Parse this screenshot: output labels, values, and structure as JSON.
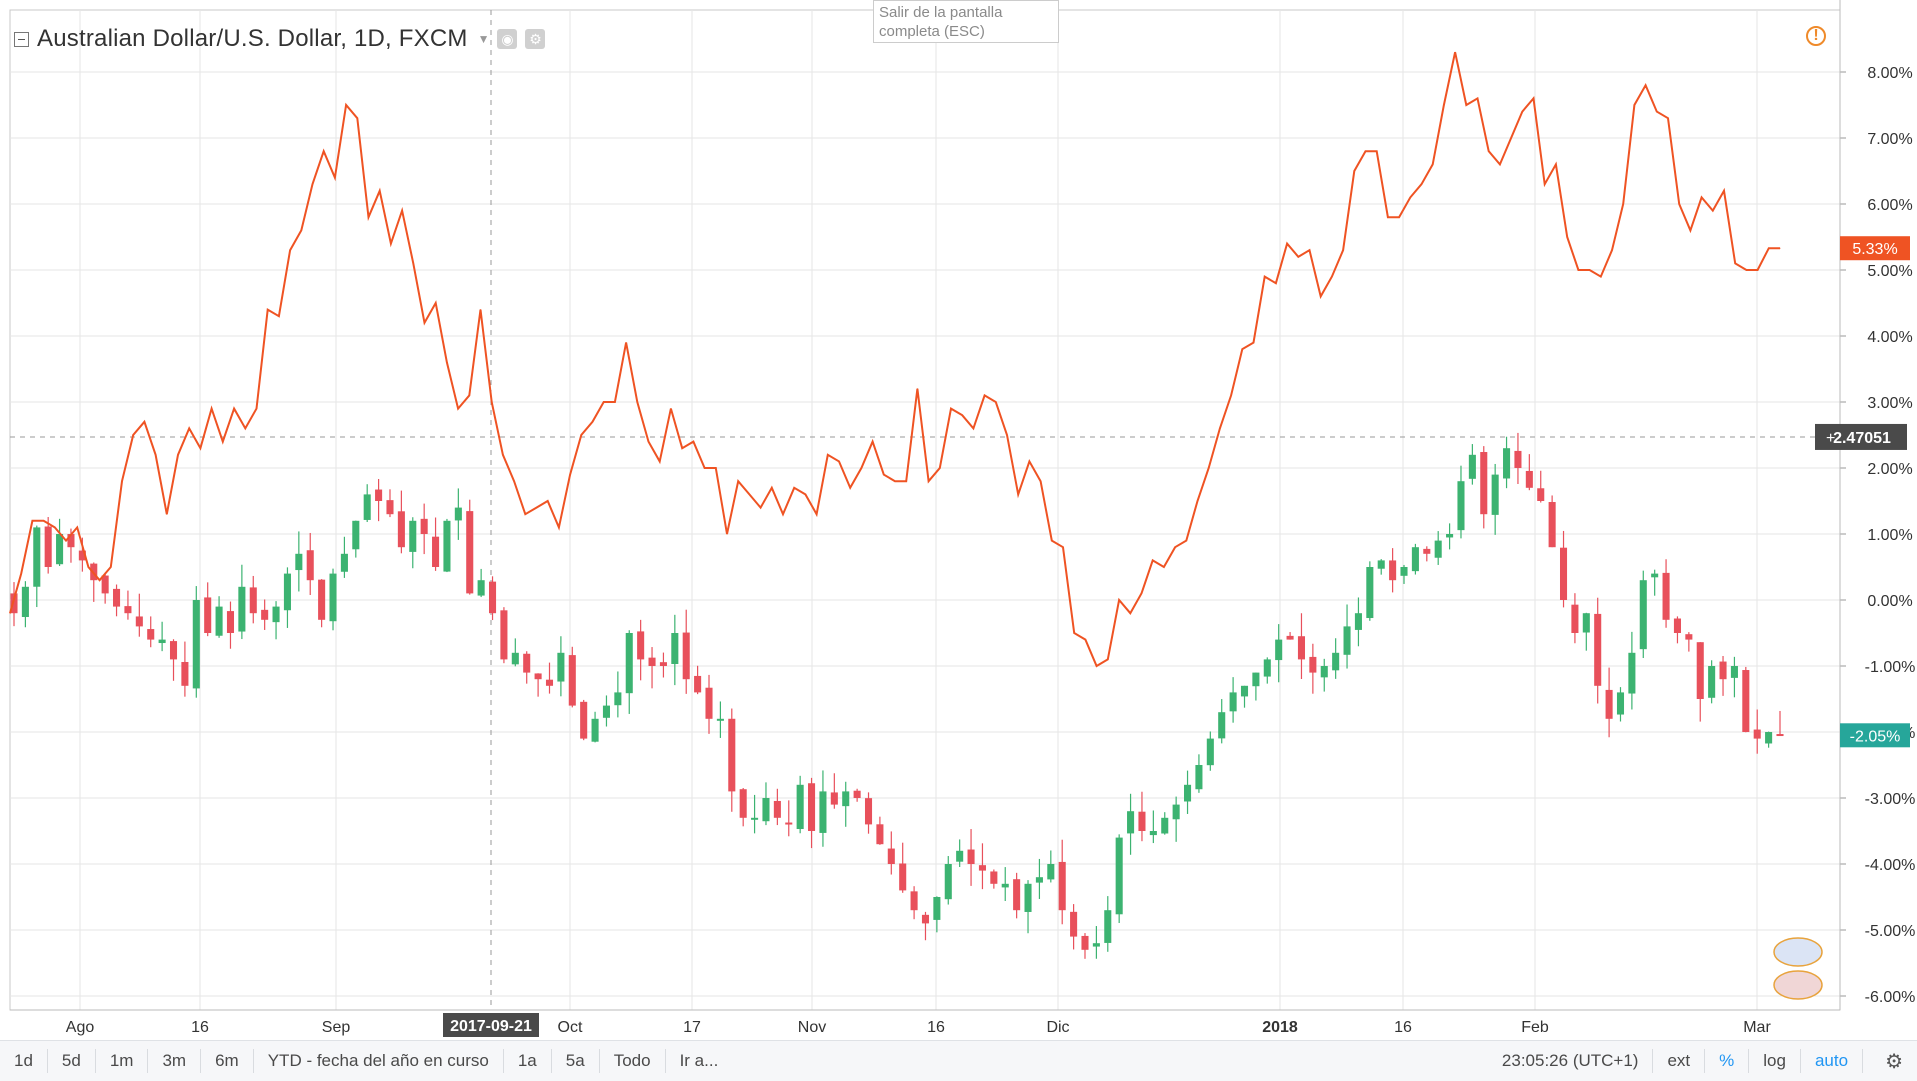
{
  "header": {
    "symbol_title": "Australian Dollar/U.S. Dollar, 1D, FXCM",
    "tooltip_line1": "Salir de la pantalla",
    "tooltip_line2": "completa (ESC)"
  },
  "toolbar": {
    "ranges": [
      "1d",
      "5d",
      "1m",
      "3m",
      "6m",
      "YTD - fecha del año en curso",
      "1a",
      "5a",
      "Todo",
      "Ir a..."
    ],
    "clock": "23:05:26 (UTC+1)",
    "ext_label": "ext",
    "percent_label": "%",
    "log_label": "log",
    "auto_label": "auto"
  },
  "colors": {
    "up": "#26a69a",
    "up_candle": "#3cb371",
    "down": "#e8505b",
    "compare_line": "#ef5323",
    "grid": "#e6e6e6",
    "axis_text": "#333333"
  },
  "chart_data": {
    "type": "candlestick+line",
    "y_axis_unit": "%",
    "ylim": [
      -6.0,
      8.6
    ],
    "y_ticks": [
      "8.00%",
      "7.00%",
      "6.00%",
      "5.00%",
      "4.00%",
      "3.00%",
      "2.00%",
      "1.00%",
      "0.00%",
      "-1.00%",
      "-2.00%",
      "-3.00%",
      "-4.00%",
      "-5.00%",
      "-6.00%"
    ],
    "x_tick_labels": [
      "Ago",
      "16",
      "Sep",
      "2017-09-21",
      "Oct",
      "17",
      "Nov",
      "16",
      "Dic",
      "2018",
      "16",
      "Feb",
      "Mar"
    ],
    "crosshair": {
      "x_label": "2017-09-21",
      "y_value": 2.47051,
      "y_label": "2.47051"
    },
    "last_values": {
      "compare": "5.33%",
      "main": "-2.05%"
    },
    "compare_series": {
      "values": [
        -0.2,
        0.4,
        1.2,
        1.2,
        1.1,
        0.9,
        1.1,
        0.5,
        0.3,
        0.5,
        1.8,
        2.5,
        2.7,
        2.2,
        1.3,
        2.2,
        2.6,
        2.3,
        2.9,
        2.4,
        2.9,
        2.6,
        2.9,
        4.4,
        4.3,
        5.3,
        5.6,
        6.3,
        6.8,
        6.4,
        7.5,
        7.3,
        5.8,
        6.2,
        5.4,
        5.9,
        5.1,
        4.2,
        4.5,
        3.6,
        2.9,
        3.1,
        4.4,
        3.0,
        2.2,
        1.8,
        1.3,
        1.4,
        1.5,
        1.1,
        1.9,
        2.5,
        2.7,
        3.0,
        3.0,
        3.9,
        3.0,
        2.4,
        2.1,
        2.9,
        2.3,
        2.4,
        2.0,
        2.0,
        1.0,
        1.8,
        1.6,
        1.4,
        1.7,
        1.3,
        1.7,
        1.6,
        1.3,
        2.2,
        2.1,
        1.7,
        2.0,
        2.4,
        1.9,
        1.8,
        1.8,
        3.2,
        1.8,
        2.0,
        2.9,
        2.8,
        2.6,
        3.1,
        3.0,
        2.5,
        1.6,
        2.1,
        1.8,
        0.9,
        0.8,
        -0.5,
        -0.6,
        -1.0,
        -0.9,
        0.0,
        -0.2,
        0.1,
        0.6,
        0.5,
        0.8,
        0.9,
        1.5,
        2.0,
        2.6,
        3.1,
        3.8,
        3.9,
        4.9,
        4.8,
        5.4,
        5.2,
        5.3,
        4.6,
        4.9,
        5.3,
        6.5,
        6.8,
        6.8,
        5.8,
        5.8,
        6.1,
        6.3,
        6.6,
        7.5,
        8.3,
        7.5,
        7.6,
        6.8,
        6.6,
        7.0,
        7.4,
        7.6,
        6.3,
        6.6,
        5.5,
        5.0,
        5.0,
        4.9,
        5.3,
        6.0,
        7.5,
        7.8,
        7.4,
        7.3,
        6.0,
        5.6,
        6.1,
        5.9,
        6.2,
        5.1,
        5.0,
        5.0,
        5.33,
        5.33
      ]
    },
    "main_series": {
      "description": "daily OHLC candles as % change",
      "close_path": [
        -0.2,
        0.2,
        1.1,
        0.5,
        1.0,
        0.8,
        0.6,
        0.3,
        0.1,
        -0.1,
        -0.2,
        -0.4,
        -0.6,
        -0.6,
        -0.9,
        -1.3,
        0.0,
        -0.5,
        -0.1,
        -0.5,
        0.2,
        -0.2,
        -0.3,
        -0.1,
        0.4,
        0.7,
        0.3,
        -0.3,
        0.4,
        0.7,
        1.2,
        1.6,
        1.5,
        1.3,
        0.8,
        1.2,
        1.0,
        0.5,
        1.2,
        1.4,
        0.1,
        0.3,
        -0.2,
        -0.9,
        -0.8,
        -1.1,
        -1.2,
        -1.3,
        -0.8,
        -1.6,
        -2.1,
        -1.8,
        -1.6,
        -1.4,
        -0.5,
        -0.9,
        -1.0,
        -1.0,
        -0.5,
        -1.2,
        -1.4,
        -1.8,
        -1.8,
        -2.9,
        -3.3,
        -3.3,
        -3.0,
        -3.3,
        -3.4,
        -2.8,
        -3.5,
        -2.9,
        -3.1,
        -2.9,
        -3.0,
        -3.4,
        -3.7,
        -4.0,
        -4.4,
        -4.7,
        -4.9,
        -4.5,
        -4.0,
        -3.8,
        -4.0,
        -4.1,
        -4.3,
        -4.3,
        -4.7,
        -4.3,
        -4.2,
        -4.0,
        -4.7,
        -5.1,
        -5.3,
        -5.2,
        -4.7,
        -3.6,
        -3.2,
        -3.5,
        -3.5,
        -3.3,
        -3.1,
        -2.8,
        -2.5,
        -2.1,
        -1.7,
        -1.4,
        -1.3,
        -1.1,
        -0.9,
        -0.6,
        -0.6,
        -0.9,
        -1.1,
        -1.0,
        -0.8,
        -0.4,
        -0.2,
        0.5,
        0.6,
        0.3,
        0.5,
        0.8,
        0.7,
        0.9,
        1.0,
        1.8,
        2.2,
        1.3,
        1.9,
        2.3,
        2.0,
        1.7,
        1.5,
        0.8,
        0.0,
        -0.5,
        -0.2,
        -1.3,
        -1.8,
        -1.4,
        -0.8,
        0.3,
        0.4,
        -0.3,
        -0.5,
        -0.6,
        -1.5,
        -1.0,
        -1.2,
        -1.0,
        -2.0,
        -2.1,
        -2.0,
        -2.05
      ]
    }
  }
}
